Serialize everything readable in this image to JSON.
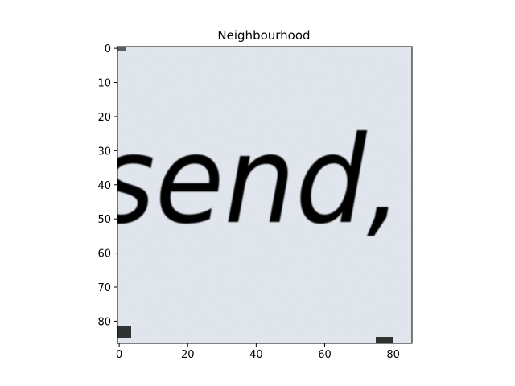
{
  "figure": {
    "title": "Neighbourhood",
    "image_text": "send,",
    "x_ticks": [
      0,
      20,
      40,
      60,
      80
    ],
    "y_ticks": [
      0,
      10,
      20,
      30,
      40,
      50,
      60,
      70,
      80
    ],
    "x_range": [
      -0.5,
      85.5
    ],
    "y_range": [
      86.5,
      -0.5
    ],
    "colors": {
      "paper": "#dde2ea",
      "ink": "#2c302e",
      "axis": "#000000"
    }
  }
}
